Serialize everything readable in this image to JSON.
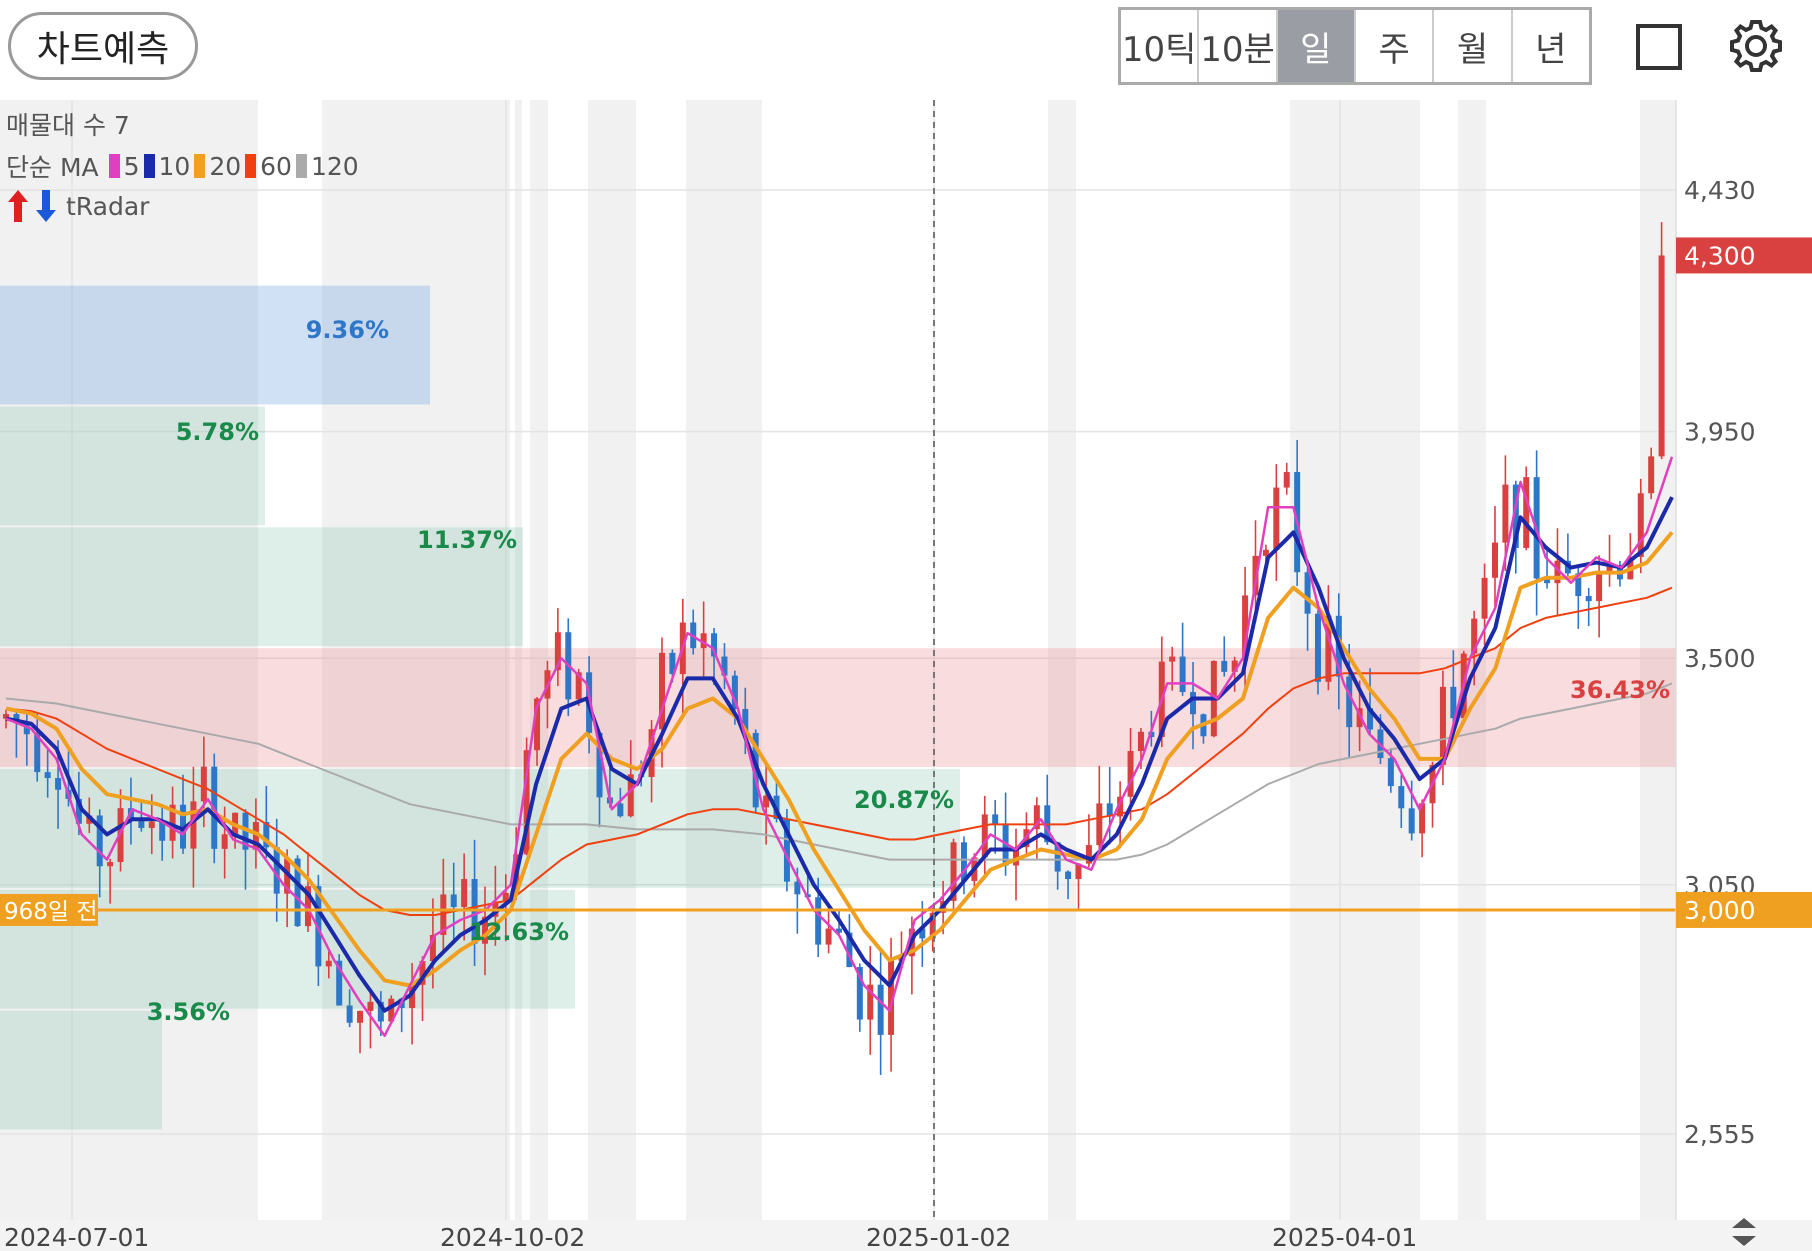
{
  "toolbar": {
    "predict_label": "차트예측",
    "periods": [
      "10틱",
      "10분",
      "일",
      "주",
      "월",
      "년"
    ],
    "active_period": "일"
  },
  "legend": {
    "volume_profile": "매물대 수 7",
    "ma_title": "단순 MA",
    "ma_items": [
      {
        "label": "5",
        "color": "#e040c0"
      },
      {
        "label": "10",
        "color": "#1a2aa8"
      },
      {
        "label": "20",
        "color": "#f0a020"
      },
      {
        "label": "60",
        "color": "#f04010"
      },
      {
        "label": "120",
        "color": "#aaaaaa"
      }
    ],
    "radar": "tRadar"
  },
  "chart_data": {
    "type": "candlestick",
    "y_ticks": [
      4430,
      3950,
      3500,
      3050,
      2555
    ],
    "y_tick_labels": [
      "4,430",
      "3,950",
      "3,500",
      "3,050",
      "2,555"
    ],
    "x_tick_labels": [
      "2024-07-01",
      "2024-10-02",
      "2025-01-02",
      "2025-04-01"
    ],
    "current_price": {
      "value": 4300,
      "label": "4,300",
      "color": "#d94040"
    },
    "reference_line": {
      "value": 3000,
      "label": "3,000",
      "left_label": "968일 전",
      "color": "#f0a020"
    },
    "volume_profile": [
      {
        "low": 4000,
        "high": 4240,
        "pct": "9.36%",
        "color": "#2e77c8"
      },
      {
        "low": 3760,
        "high": 4000,
        "pct": "5.78%",
        "color": "#1a8a4a"
      },
      {
        "low": 3520,
        "high": 3760,
        "pct": "11.37%",
        "color": "#1a8a4a"
      },
      {
        "low": 3280,
        "high": 3520,
        "pct": "36.43%",
        "color": "#d94040"
      },
      {
        "low": 3040,
        "high": 3280,
        "pct": "20.87%",
        "color": "#1a8a4a"
      },
      {
        "low": 2800,
        "high": 3040,
        "pct": "12.63%",
        "color": "#1a8a4a"
      },
      {
        "low": 2560,
        "high": 2800,
        "pct": "3.56%",
        "color": "#1a8a4a"
      }
    ],
    "ma_series": {
      "ma5": [
        3380,
        3360,
        3300,
        3150,
        3100,
        3200,
        3180,
        3150,
        3220,
        3140,
        3120,
        3050,
        3000,
        2900,
        2820,
        2750,
        2850,
        2950,
        2980,
        3000,
        3050,
        3400,
        3500,
        3450,
        3200,
        3250,
        3400,
        3550,
        3520,
        3400,
        3200,
        3100,
        3000,
        2950,
        2850,
        2800,
        2980,
        3020,
        3080,
        3150,
        3120,
        3180,
        3100,
        3080,
        3200,
        3300,
        3450,
        3450,
        3420,
        3500,
        3800,
        3800,
        3600,
        3450,
        3350,
        3300,
        3200,
        3300,
        3500,
        3600,
        3850,
        3700,
        3650,
        3700,
        3680,
        3750,
        3900
      ],
      "ma10": [
        3380,
        3370,
        3320,
        3200,
        3150,
        3180,
        3180,
        3160,
        3200,
        3150,
        3130,
        3080,
        3030,
        2950,
        2870,
        2800,
        2830,
        2900,
        2950,
        2980,
        3020,
        3250,
        3400,
        3420,
        3280,
        3250,
        3350,
        3460,
        3460,
        3380,
        3250,
        3150,
        3050,
        2980,
        2900,
        2850,
        2950,
        3000,
        3060,
        3120,
        3120,
        3150,
        3120,
        3100,
        3150,
        3250,
        3380,
        3420,
        3420,
        3470,
        3700,
        3750,
        3640,
        3500,
        3400,
        3340,
        3260,
        3300,
        3460,
        3560,
        3780,
        3720,
        3680,
        3690,
        3680,
        3720,
        3820
      ],
      "ma20": [
        3400,
        3390,
        3360,
        3280,
        3230,
        3220,
        3210,
        3190,
        3200,
        3170,
        3150,
        3110,
        3060,
        2990,
        2920,
        2860,
        2850,
        2880,
        2920,
        2950,
        3000,
        3150,
        3300,
        3350,
        3300,
        3280,
        3320,
        3400,
        3420,
        3380,
        3300,
        3220,
        3120,
        3040,
        2960,
        2900,
        2920,
        2960,
        3020,
        3080,
        3100,
        3120,
        3110,
        3100,
        3120,
        3180,
        3300,
        3360,
        3380,
        3420,
        3580,
        3640,
        3600,
        3520,
        3440,
        3380,
        3300,
        3300,
        3400,
        3480,
        3640,
        3660,
        3660,
        3670,
        3670,
        3690,
        3750
      ],
      "ma60": [
        3400,
        3395,
        3380,
        3350,
        3320,
        3300,
        3280,
        3260,
        3240,
        3210,
        3180,
        3150,
        3110,
        3070,
        3030,
        3000,
        2990,
        2990,
        3000,
        3010,
        3020,
        3060,
        3100,
        3130,
        3140,
        3150,
        3170,
        3190,
        3200,
        3200,
        3190,
        3180,
        3170,
        3160,
        3150,
        3140,
        3140,
        3150,
        3160,
        3170,
        3170,
        3170,
        3170,
        3180,
        3190,
        3200,
        3230,
        3270,
        3310,
        3350,
        3400,
        3440,
        3460,
        3470,
        3470,
        3470,
        3470,
        3480,
        3500,
        3520,
        3560,
        3580,
        3590,
        3600,
        3610,
        3620,
        3640
      ],
      "ma120": [
        3420,
        3415,
        3410,
        3400,
        3390,
        3380,
        3370,
        3360,
        3350,
        3340,
        3330,
        3310,
        3290,
        3270,
        3250,
        3230,
        3210,
        3200,
        3190,
        3180,
        3170,
        3170,
        3170,
        3170,
        3165,
        3160,
        3160,
        3160,
        3160,
        3155,
        3150,
        3140,
        3130,
        3120,
        3110,
        3100,
        3100,
        3100,
        3100,
        3100,
        3100,
        3100,
        3100,
        3100,
        3100,
        3110,
        3130,
        3160,
        3190,
        3220,
        3250,
        3270,
        3290,
        3300,
        3310,
        3320,
        3330,
        3340,
        3350,
        3360,
        3380,
        3390,
        3400,
        3410,
        3420,
        3430,
        3450
      ]
    }
  }
}
